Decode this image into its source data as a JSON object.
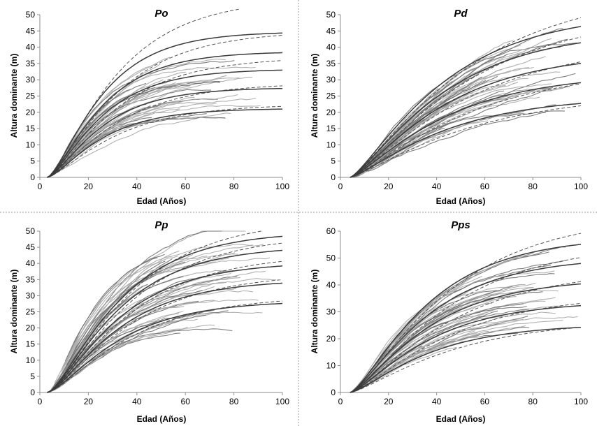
{
  "figure": {
    "xlabel": "Edad (Años)",
    "ylabel": "Altura dominante (m)"
  },
  "chart_data": [
    {
      "type": "line",
      "title": "Po",
      "xlabel": "Edad (Años)",
      "ylabel": "Altura dominante (m)",
      "xlim": [
        0,
        100
      ],
      "ylim": [
        0,
        50
      ],
      "xticks": [
        0,
        20,
        40,
        60,
        80,
        100
      ],
      "yticks": [
        0,
        5,
        10,
        15,
        20,
        25,
        30,
        35,
        40,
        45,
        50
      ],
      "t0": 3,
      "model_asymptotes": [
        44.8,
        38.7,
        33.3,
        27.6,
        21.2
      ],
      "model_rate": 0.052,
      "model_shape": 1.55,
      "dashed_asymptotes": [
        55,
        45,
        37,
        29,
        22.5
      ],
      "dashed_rate": 0.04,
      "dashed_shape": 1.45,
      "dashed_xmax": [
        82,
        100,
        100,
        100,
        100
      ],
      "observed_series": 44,
      "observed_seed": 11,
      "observed_range": [
        16,
        36
      ],
      "observed_curvature": 0.05
    },
    {
      "type": "line",
      "title": "Pd",
      "xlabel": "Edad (Años)",
      "ylabel": "Altura dominante (m)",
      "xlim": [
        0,
        100
      ],
      "ylim": [
        0,
        50
      ],
      "xticks": [
        0,
        20,
        40,
        60,
        80,
        100
      ],
      "yticks": [
        0,
        5,
        10,
        15,
        20,
        25,
        30,
        35,
        40,
        45,
        50
      ],
      "t0": 4,
      "model_asymptotes": [
        51,
        45.5,
        38.5,
        32,
        25
      ],
      "model_rate": 0.028,
      "model_shape": 1.35,
      "dashed_asymptotes": [
        58,
        51,
        42,
        34,
        26
      ],
      "dashed_rate": 0.022,
      "dashed_shape": 1.3,
      "dashed_xmax": [
        100,
        100,
        100,
        100,
        100
      ],
      "observed_series": 58,
      "observed_seed": 23,
      "observed_range": [
        14,
        33
      ],
      "observed_curvature": 0.03
    },
    {
      "type": "line",
      "title": "Pp",
      "xlabel": "Edad (Años)",
      "ylabel": "Altura dominante (m)",
      "xlim": [
        0,
        100
      ],
      "ylim": [
        0,
        50
      ],
      "xticks": [
        0,
        20,
        40,
        60,
        80,
        100
      ],
      "yticks": [
        0,
        5,
        10,
        15,
        20,
        25,
        30,
        35,
        40,
        45,
        50
      ],
      "t0": 3,
      "model_asymptotes": [
        50,
        45.5,
        40.5,
        35,
        28.5
      ],
      "model_rate": 0.04,
      "model_shape": 1.55,
      "dashed_asymptotes": [
        54,
        49,
        43,
        37,
        30
      ],
      "dashed_rate": 0.034,
      "dashed_shape": 1.5,
      "dashed_xmax": [
        92,
        100,
        100,
        100,
        100
      ],
      "observed_series": 56,
      "observed_seed": 37,
      "observed_range": [
        18,
        44
      ],
      "observed_curvature": 0.045
    },
    {
      "type": "line",
      "title": "Pps",
      "xlabel": "Edad (Años)",
      "ylabel": "Altura dominante (m)",
      "xlim": [
        0,
        100
      ],
      "ylim": [
        0,
        60
      ],
      "xticks": [
        0,
        20,
        40,
        60,
        80,
        100
      ],
      "yticks": [
        0,
        10,
        20,
        30,
        40,
        50,
        60
      ],
      "t0": 4,
      "model_asymptotes": [
        58,
        50.5,
        42.5,
        34,
        25.5
      ],
      "model_rate": 0.035,
      "model_shape": 1.45,
      "dashed_asymptotes": [
        66,
        56,
        46,
        37,
        27
      ],
      "dashed_rate": 0.027,
      "dashed_shape": 1.4,
      "dashed_xmax": [
        100,
        100,
        100,
        100,
        100
      ],
      "observed_series": 54,
      "observed_seed": 51,
      "observed_range": [
        18,
        42
      ],
      "observed_curvature": 0.038
    }
  ]
}
